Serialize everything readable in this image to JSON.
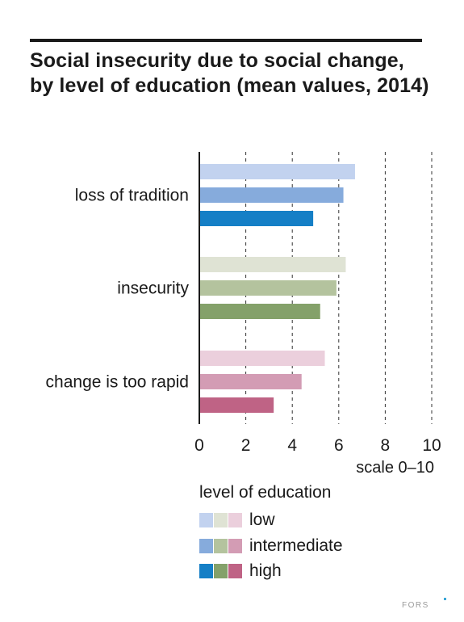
{
  "title": "Social insecurity due to social change, by level of education (mean values, 2014)",
  "brand": "FORS",
  "brand_color": "#3aa7d8",
  "chart_data": {
    "type": "bar",
    "orientation": "horizontal",
    "title": "Social insecurity due to social change, by level of education (mean values, 2014)",
    "xlabel": "scale 0–10",
    "xlim": [
      0,
      10
    ],
    "xticks": [
      "0",
      "2",
      "4",
      "6",
      "8",
      "10"
    ],
    "grid": "dashed vertical",
    "categories": [
      "loss of tradition",
      "insecurity",
      "change is too rapid"
    ],
    "series": [
      {
        "name": "low",
        "values": [
          6.7,
          6.3,
          5.4
        ]
      },
      {
        "name": "intermediate",
        "values": [
          6.2,
          5.9,
          4.4
        ]
      },
      {
        "name": "high",
        "values": [
          4.9,
          5.2,
          3.2
        ]
      }
    ],
    "colors": [
      [
        "#c2d2ef",
        "#86abdc",
        "#157fc6"
      ],
      [
        "#dfe3d4",
        "#b4c39e",
        "#84a16a"
      ],
      [
        "#ebcfdc",
        "#d39cb4",
        "#bf6385"
      ]
    ]
  },
  "legend": {
    "title": "level of education",
    "items": [
      {
        "label": "low",
        "colors": [
          "#c2d2ef",
          "#dfe3d4",
          "#ebcfdc"
        ]
      },
      {
        "label": "intermediate",
        "colors": [
          "#86abdc",
          "#b4c39e",
          "#d39cb4"
        ]
      },
      {
        "label": "high",
        "colors": [
          "#157fc6",
          "#84a16a",
          "#bf6385"
        ]
      }
    ]
  }
}
